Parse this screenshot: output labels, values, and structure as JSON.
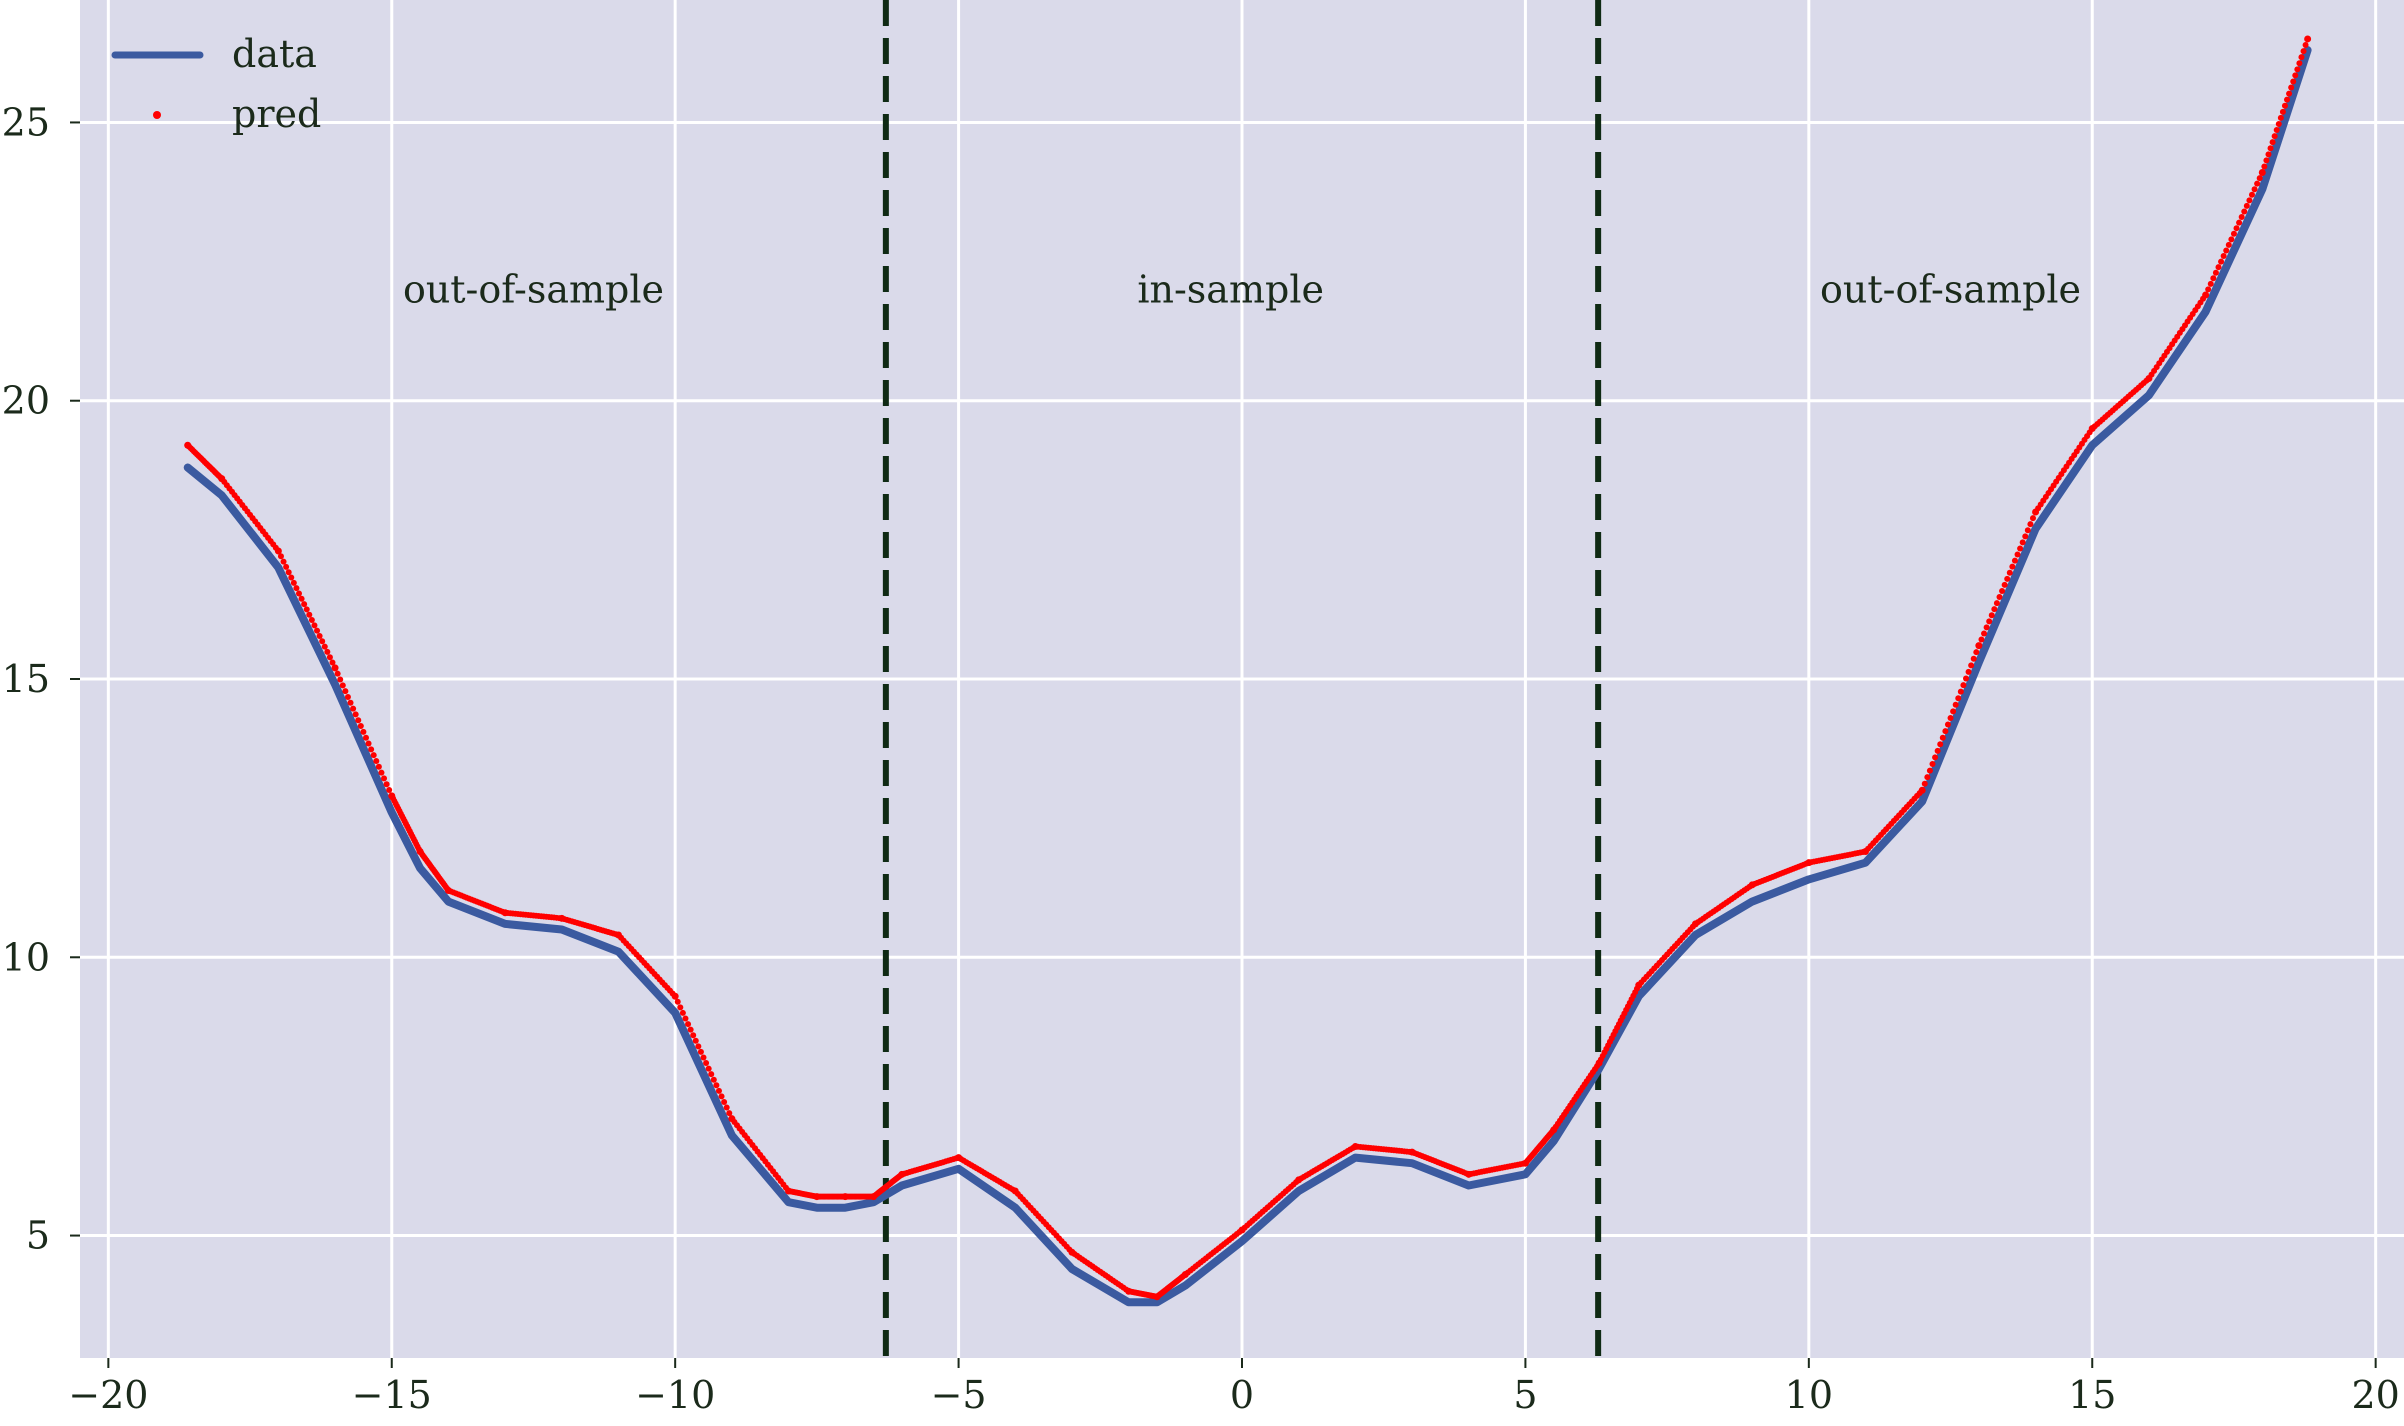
{
  "chart_data": {
    "type": "line",
    "title": "",
    "xlabel": "",
    "ylabel": "",
    "xlim": [
      -20.5,
      20.5
    ],
    "ylim": [
      2.8,
      27.2
    ],
    "xticks": [
      -20,
      -15,
      -10,
      -5,
      0,
      5,
      10,
      15,
      20
    ],
    "xtick_labels": [
      "−20",
      "−15",
      "−10",
      "−5",
      "0",
      "5",
      "10",
      "15",
      "20"
    ],
    "yticks": [
      5,
      10,
      15,
      20,
      25
    ],
    "ytick_labels": [
      "5",
      "10",
      "15",
      "20",
      "25"
    ],
    "grid": true,
    "legend_position": "top-left",
    "vlines": [
      -6.283,
      6.283
    ],
    "annotations": [
      {
        "text": "out-of-sample",
        "x": -12.5,
        "y": 22.0
      },
      {
        "text": "in-sample",
        "x": -0.2,
        "y": 22.0
      },
      {
        "text": "out-of-sample",
        "x": 12.5,
        "y": 22.0
      }
    ],
    "series": [
      {
        "name": "data",
        "style": "line",
        "color": "#3b5aa0",
        "x": [
          -18.6,
          -18.0,
          -17.0,
          -16.0,
          -15.0,
          -14.5,
          -14.0,
          -13.0,
          -12.0,
          -11.0,
          -10.0,
          -9.0,
          -8.0,
          -7.5,
          -7.0,
          -6.5,
          -6.0,
          -5.0,
          -4.0,
          -3.0,
          -2.0,
          -1.5,
          -1.0,
          0.0,
          1.0,
          2.0,
          3.0,
          4.0,
          5.0,
          5.5,
          6.3,
          7.0,
          8.0,
          9.0,
          10.0,
          11.0,
          12.0,
          13.0,
          14.0,
          15.0,
          16.0,
          17.0,
          18.0,
          18.8
        ],
        "y": [
          18.8,
          18.3,
          17.0,
          14.9,
          12.6,
          11.6,
          11.0,
          10.6,
          10.5,
          10.1,
          9.0,
          6.8,
          5.6,
          5.5,
          5.5,
          5.6,
          5.9,
          6.2,
          5.5,
          4.4,
          3.8,
          3.8,
          4.1,
          4.9,
          5.8,
          6.4,
          6.3,
          5.9,
          6.1,
          6.7,
          8.0,
          9.3,
          10.4,
          11.0,
          11.4,
          11.7,
          12.8,
          15.3,
          17.7,
          19.2,
          20.1,
          21.6,
          23.8,
          26.3
        ]
      },
      {
        "name": "pred",
        "style": "points",
        "color": "#ff0000",
        "x": [
          -18.6,
          -18.0,
          -17.0,
          -16.0,
          -15.0,
          -14.5,
          -14.0,
          -13.0,
          -12.0,
          -11.0,
          -10.0,
          -9.0,
          -8.0,
          -7.5,
          -7.0,
          -6.5,
          -6.0,
          -5.0,
          -4.0,
          -3.0,
          -2.0,
          -1.5,
          -1.0,
          0.0,
          1.0,
          2.0,
          3.0,
          4.0,
          5.0,
          5.5,
          6.3,
          7.0,
          8.0,
          9.0,
          10.0,
          11.0,
          12.0,
          13.0,
          14.0,
          15.0,
          16.0,
          17.0,
          18.0,
          18.8
        ],
        "y": [
          19.2,
          18.6,
          17.3,
          15.2,
          12.9,
          11.9,
          11.2,
          10.8,
          10.7,
          10.4,
          9.3,
          7.1,
          5.8,
          5.7,
          5.7,
          5.7,
          6.1,
          6.4,
          5.8,
          4.7,
          4.0,
          3.9,
          4.3,
          5.1,
          6.0,
          6.6,
          6.5,
          6.1,
          6.3,
          6.9,
          8.1,
          9.5,
          10.6,
          11.3,
          11.7,
          11.9,
          13.0,
          15.6,
          18.0,
          19.5,
          20.4,
          21.9,
          24.1,
          26.5
        ]
      }
    ]
  }
}
